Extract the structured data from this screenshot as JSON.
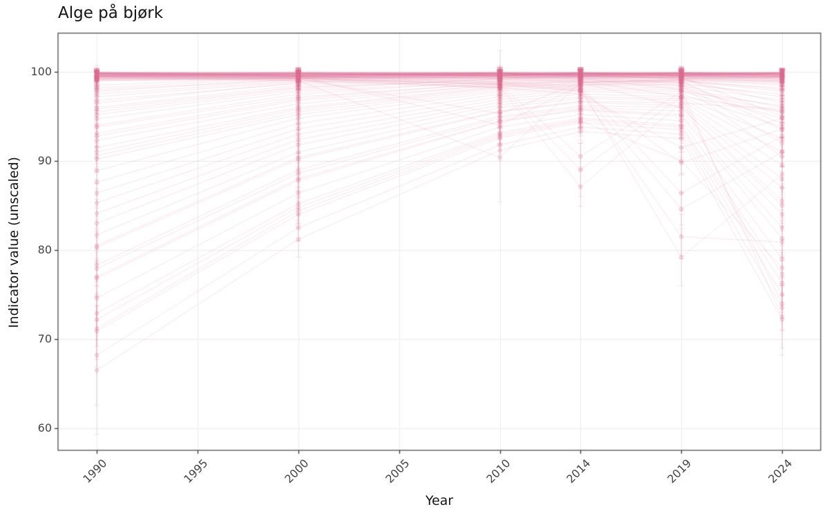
{
  "chart_data": {
    "type": "line",
    "title": "Alge på bjørk",
    "xlabel": "Year",
    "ylabel": "Indicator value (unscaled)",
    "x": [
      1990,
      2000,
      2010,
      2014,
      2019,
      2024
    ],
    "xticks": [
      1990,
      1995,
      2000,
      2005,
      2010,
      2014,
      2019,
      2024
    ],
    "yticks": [
      60,
      70,
      80,
      90,
      100
    ],
    "xlim": [
      1988.1,
      2025.9
    ],
    "ylim": [
      57.5,
      104.3
    ],
    "grid": "major-only",
    "legend": "none",
    "marker": "circle-with-errorbar",
    "colors": {
      "line": "#db7093",
      "grid": "#ebebeb",
      "border": "#4d4d4d",
      "tick": "#333333",
      "text": "#444444",
      "panel_bg": "#ffffff"
    },
    "series": [
      {
        "v": [
          99.9,
          99.8,
          99.9,
          99.9,
          99.8,
          99.9
        ],
        "e": 0.3
      },
      {
        "v": [
          99.7,
          99.9,
          99.8,
          99.7,
          99.9,
          99.8
        ],
        "e": 0.4
      },
      {
        "v": [
          100,
          99.9,
          100,
          99.9,
          100,
          99.9
        ],
        "e": 0.2
      },
      {
        "v": [
          99.5,
          99.7,
          99.6,
          99.8,
          99.7,
          99.5
        ],
        "e": 0.5
      },
      {
        "v": [
          99.8,
          99.6,
          99.9,
          99.5,
          99.8,
          99.7
        ],
        "e": 0.6
      },
      {
        "v": [
          99.3,
          99.5,
          99.7,
          99.6,
          99.4,
          99.5
        ],
        "e": 0.7
      },
      {
        "v": [
          99.6,
          99.8,
          99.5,
          99.9,
          99.6,
          99.8
        ],
        "e": 0.4
      },
      {
        "v": [
          99.9,
          99.7,
          99.8,
          99.8,
          99.9,
          99.7
        ],
        "e": 0.3
      },
      {
        "v": [
          99.4,
          99.6,
          99.8,
          99.7,
          99.8,
          99.6
        ],
        "e": 0.8
      },
      {
        "v": [
          99.8,
          99.9,
          99.7,
          99.9,
          99.8,
          99.9
        ],
        "e": 0.3
      },
      {
        "v": [
          99.2,
          99.4,
          99.6,
          99.5,
          99.6,
          99.3
        ],
        "e": 0.9
      },
      {
        "v": [
          99.7,
          99.5,
          99.8,
          99.6,
          99.7,
          99.9
        ],
        "e": 0.5
      },
      {
        "v": [
          99.9,
          100,
          99.9,
          100,
          99.9,
          100
        ],
        "e": 0.2
      },
      {
        "v": [
          99.5,
          99.8,
          99.7,
          99.9,
          99.8,
          99.7
        ],
        "e": 0.5
      },
      {
        "v": [
          99.8,
          99.7,
          99.9,
          99.8,
          99.7,
          99.8
        ],
        "e": 0.4
      },
      {
        "v": [
          99.1,
          99.3,
          99.5,
          99.4,
          99.2,
          99.4
        ],
        "e": 1.0
      },
      {
        "v": [
          99.6,
          99.7,
          99.8,
          99.6,
          99.9,
          99.7
        ],
        "e": 0.5
      },
      {
        "v": [
          99.9,
          99.8,
          99.7,
          99.9,
          99.8,
          99.6
        ],
        "e": 0.4
      },
      {
        "v": [
          99.3,
          99.6,
          99.4,
          99.7,
          99.5,
          99.6
        ],
        "e": 0.8
      },
      {
        "v": [
          99.7,
          99.8,
          99.9,
          99.7,
          99.8,
          99.9
        ],
        "e": 0.3
      },
      {
        "v": [
          99.8,
          99.5,
          99.6,
          99.8,
          99.7,
          99.5
        ],
        "e": 0.6
      },
      {
        "v": [
          99.0,
          99.2,
          99.4,
          99.3,
          99.5,
          99.2
        ],
        "e": 1.1
      },
      {
        "v": [
          99.5,
          99.6,
          99.7,
          99.8,
          99.6,
          99.8
        ],
        "e": 0.5
      },
      {
        "v": [
          99.9,
          99.9,
          99.8,
          99.7,
          99.9,
          99.8
        ],
        "e": 0.3
      },
      {
        "v": [
          99.6,
          99.4,
          99.7,
          99.5,
          99.6,
          99.4
        ],
        "e": 0.7
      },
      {
        "v": [
          99.8,
          99.8,
          99.9,
          99.9,
          99.7,
          99.9
        ],
        "e": 0.3
      },
      {
        "v": [
          99.2,
          99.5,
          99.3,
          99.6,
          99.4,
          99.5
        ],
        "e": 0.9
      },
      {
        "v": [
          99.7,
          99.6,
          99.8,
          99.7,
          99.9,
          99.8
        ],
        "e": 0.4
      },
      {
        "v": [
          99.4,
          99.7,
          99.6,
          99.8,
          99.7,
          99.6
        ],
        "e": 0.7
      },
      {
        "v": [
          99.9,
          99.7,
          99.9,
          99.8,
          99.8,
          99.9
        ],
        "e": 0.3
      },
      {
        "v": [
          99.6,
          99.9,
          99.7,
          99.8,
          99.9,
          99.7
        ],
        "e": 0.4
      },
      {
        "v": [
          99.1,
          99.4,
          99.2,
          99.5,
          99.3,
          99.4
        ],
        "e": 1.0
      },
      {
        "v": [
          99.8,
          99.6,
          99.8,
          99.7,
          99.6,
          99.8
        ],
        "e": 0.5
      },
      {
        "v": [
          99.5,
          99.5,
          99.6,
          99.6,
          99.5,
          99.7
        ],
        "e": 0.6
      },
      {
        "v": [
          99.7,
          99.9,
          99.6,
          99.9,
          99.7,
          99.9
        ],
        "e": 0.4
      },
      {
        "v": [
          99.3,
          99.4,
          99.6,
          99.4,
          99.6,
          99.5
        ],
        "e": 0.8
      },
      {
        "v": [
          99.9,
          99.8,
          99.8,
          99.9,
          99.7,
          99.8
        ],
        "e": 0.3
      },
      {
        "v": [
          99.4,
          99.5,
          99.7,
          99.6,
          99.8,
          99.5
        ],
        "e": 0.7
      },
      {
        "v": [
          99.8,
          99.7,
          99.6,
          99.8,
          99.9,
          99.6
        ],
        "e": 0.5
      },
      {
        "v": [
          99.6,
          99.6,
          99.9,
          99.7,
          99.8,
          99.8
        ],
        "e": 0.4
      },
      {
        "v": [
          99.0,
          99.3,
          99.5,
          99.2,
          99.4,
          99.1
        ],
        "e": 1.2
      },
      {
        "v": [
          99.7,
          99.7,
          99.8,
          99.8,
          99.7,
          99.7
        ],
        "e": 0.4
      },
      {
        "v": [
          99.5,
          99.9,
          99.8,
          99.6,
          99.9,
          99.8
        ],
        "e": 0.5
      },
      {
        "v": [
          99.9,
          99.6,
          99.7,
          99.9,
          99.6,
          99.9
        ],
        "e": 0.4
      },
      {
        "v": [
          99.2,
          99.3,
          99.4,
          99.5,
          99.3,
          99.3
        ],
        "e": 0.9
      },
      {
        "v": [
          99.8,
          99.9,
          99.9,
          99.8,
          99.9,
          99.9
        ],
        "e": 0.2
      },
      {
        "v": [
          99.6,
          99.5,
          99.6,
          99.7,
          99.5,
          99.6
        ],
        "e": 0.6
      },
      {
        "v": [
          99.4,
          99.8,
          99.5,
          99.7,
          99.6,
          99.7
        ],
        "e": 0.6
      },
      {
        "v": [
          97.8,
          99.2,
          99.6,
          99.7,
          99.5,
          99.4
        ],
        "e": 0.6
      },
      {
        "v": [
          96.5,
          98.8,
          99.4,
          99.5,
          99.6,
          99.2
        ],
        "e": 0.8
      },
      {
        "v": [
          95.2,
          98.0,
          99.2,
          99.4,
          99.3,
          98.8
        ],
        "e": 0.9
      },
      {
        "v": [
          94.0,
          97.5,
          99.0,
          99.2,
          99.4,
          99.0
        ],
        "e": 1.0
      },
      {
        "v": [
          93.1,
          97.0,
          98.8,
          99.1,
          99.2,
          98.5
        ],
        "e": 1.1
      },
      {
        "v": [
          92.3,
          96.4,
          98.6,
          99.0,
          98.9,
          98.2
        ],
        "e": 1.2
      },
      {
        "v": [
          91.5,
          96.0,
          98.4,
          98.8,
          99.0,
          97.8
        ],
        "e": 1.2
      },
      {
        "v": [
          90.6,
          95.5,
          98.2,
          98.7,
          98.8,
          97.2
        ],
        "e": 1.3
      },
      {
        "v": [
          96.0,
          98.5,
          99.3,
          99.5,
          99.2,
          96.5
        ],
        "e": 0.8
      },
      {
        "v": [
          97.2,
          98.9,
          99.5,
          99.6,
          99.4,
          95.0
        ],
        "e": 0.7
      },
      {
        "v": [
          95.8,
          98.3,
          99.1,
          99.3,
          99.0,
          93.5
        ],
        "e": 0.9
      },
      {
        "v": [
          94.7,
          97.8,
          98.9,
          99.1,
          98.7,
          92.0
        ],
        "e": 1.0
      },
      {
        "v": [
          93.8,
          97.2,
          98.7,
          98.9,
          98.5,
          90.5
        ],
        "e": 1.1
      },
      {
        "v": [
          98.2,
          99.3,
          99.7,
          99.8,
          99.6,
          99.5
        ],
        "e": 0.5
      },
      {
        "v": [
          97.5,
          99.0,
          99.5,
          99.6,
          99.3,
          98.9
        ],
        "e": 0.6
      },
      {
        "v": [
          96.8,
          98.7,
          99.3,
          99.4,
          99.5,
          99.1
        ],
        "e": 0.7
      },
      {
        "v": [
          98.5,
          99.4,
          99.8,
          99.7,
          99.8,
          99.6
        ],
        "e": 0.4
      },
      {
        "v": [
          92.8,
          96.8,
          98.5,
          98.9,
          99.1,
          98.0
        ],
        "e": 1.2
      },
      {
        "v": [
          91.0,
          95.8,
          98.3,
          98.6,
          98.4,
          96.8
        ],
        "e": 1.3
      },
      {
        "v": [
          90.2,
          95.2,
          98.0,
          98.5,
          98.6,
          97.5
        ],
        "e": 1.4
      },
      {
        "v": [
          98.0,
          99.1,
          99.6,
          99.5,
          99.7,
          99.3
        ],
        "e": 0.5
      },
      {
        "v": [
          95.5,
          98.2,
          99.2,
          99.3,
          98.8,
          94.2
        ],
        "e": 0.9
      },
      {
        "v": [
          88.9,
          94.8,
          97.8,
          98.4,
          98.2,
          96.0
        ],
        "e": 1.4
      },
      {
        "v": [
          87.6,
          94.2,
          97.5,
          98.2,
          98.0,
          95.5
        ],
        "e": 1.5
      },
      {
        "v": [
          86.4,
          93.6,
          97.2,
          98.0,
          97.8,
          94.8
        ],
        "e": 1.5
      },
      {
        "v": [
          85.3,
          93.0,
          96.9,
          97.8,
          97.5,
          93.8
        ],
        "e": 1.6
      },
      {
        "v": [
          84.1,
          92.4,
          96.6,
          97.5,
          97.2,
          92.5
        ],
        "e": 1.6
      },
      {
        "v": [
          83.0,
          91.8,
          96.3,
          97.2,
          97.0,
          91.0
        ],
        "e": 1.7
      },
      {
        "v": [
          81.7,
          91.0,
          96.0,
          97.0,
          96.8,
          89.5
        ],
        "e": 1.7
      },
      {
        "v": [
          80.5,
          90.4,
          95.6,
          96.7,
          96.5,
          88.0
        ],
        "e": 1.8
      },
      {
        "v": [
          80.3,
          90.2,
          95.5,
          96.6,
          96.2,
          87.0
        ],
        "e": 1.8
      },
      {
        "v": [
          78.3,
          89.0,
          95.0,
          96.2,
          96.0,
          85.5
        ],
        "e": 1.9
      },
      {
        "v": [
          77.9,
          88.6,
          94.8,
          96.0,
          95.6,
          84.0
        ],
        "e": 1.9
      },
      {
        "v": [
          77.0,
          88.0,
          94.5,
          95.8,
          95.2,
          82.5
        ],
        "e": 2.0
      },
      {
        "v": [
          76.8,
          87.8,
          94.4,
          95.7,
          95.0,
          81.3
        ],
        "e": 2.0
      },
      {
        "v": [
          74.6,
          86.4,
          93.8,
          95.2,
          94.5,
          79.0
        ],
        "e": [
          2.5,
          1.8,
          1.2,
          1,
          1.2,
          2.2
        ]
      },
      {
        "v": [
          72.9,
          85.2,
          93.2,
          94.8,
          94.0,
          77.3
        ],
        "e": [
          3,
          1.8,
          1.2,
          1,
          1.2,
          2.4
        ]
      },
      {
        "v": [
          72.2,
          84.8,
          93.0,
          94.6,
          93.8,
          76.3
        ],
        "e": [
          3,
          1.8,
          1.2,
          1,
          1.2,
          2.5
        ]
      },
      {
        "v": [
          70.9,
          84.0,
          92.6,
          94.3,
          93.5,
          75.0
        ],
        "e": [
          4,
          1.5,
          1,
          1,
          1,
          2
        ]
      },
      {
        "v": [
          68.2,
          82.5,
          91.8,
          93.8,
          93.0,
          73.5
        ],
        "e": [
          5.6,
          1.5,
          1,
          1,
          1,
          2.5
        ]
      },
      {
        "v": [
          66.5,
          81.2,
          91.2,
          93.3,
          92.5,
          72.2
        ],
        "e": [
          7.2,
          2,
          1.2,
          1,
          1.5,
          4
        ]
      },
      {
        "v": [
          71.2,
          84.4,
          92.8,
          94.5,
          90.0,
          78.0
        ],
        "e": [
          3.5,
          1.5,
          1,
          1,
          1.5,
          2
        ]
      },
      {
        "v": [
          99.5,
          99.0,
          90.4,
          98.8,
          99.2,
          99.0
        ],
        "e": [
          0.5,
          0.6,
          5,
          0.8,
          0.6,
          0.7
        ]
      },
      {
        "v": [
          99.8,
          99.5,
          94.0,
          98.5,
          99.0,
          98.7
        ],
        "e": [
          0.4,
          0.5,
          2,
          0.7,
          0.6,
          0.8
        ]
      },
      {
        "v": [
          99.6,
          99.2,
          95.3,
          98.8,
          99.1,
          98.9
        ],
        "e": 0.8
      },
      {
        "v": [
          99.5,
          99.3,
          98.2,
          87.1,
          96.5,
          95.8
        ],
        "e": [
          0.5,
          0.5,
          0.8,
          2.2,
          1,
          1.2
        ]
      },
      {
        "v": [
          99.6,
          99.4,
          98.6,
          90.5,
          97.8,
          96.2
        ],
        "e": [
          0.4,
          0.5,
          0.7,
          1.5,
          0.9,
          1.1
        ]
      },
      {
        "v": [
          99.4,
          99.1,
          98.3,
          89.0,
          97.2,
          95.5
        ],
        "e": [
          0.5,
          0.6,
          0.8,
          3,
          0.9,
          1.2
        ]
      },
      {
        "v": [
          99.9,
          99.6,
          98.8,
          98.2,
          79.2,
          88.5
        ],
        "e": [
          0.3,
          0.5,
          0.8,
          1,
          3.2,
          2
        ]
      },
      {
        "v": [
          99.7,
          99.3,
          98.5,
          97.8,
          81.5,
          80.9
        ],
        "e": [
          0.4,
          0.6,
          0.9,
          1.1,
          2.5,
          1.8
        ]
      },
      {
        "v": [
          99.8,
          99.5,
          98.9,
          98.4,
          86.4,
          92.8
        ],
        "e": [
          0.4,
          0.5,
          0.8,
          1,
          2,
          1.5
        ]
      },
      {
        "v": [
          99.5,
          99.2,
          98.6,
          97.9,
          89.8,
          93.6
        ],
        "e": 1.2
      },
      {
        "v": [
          99.3,
          99.0,
          98.2,
          97.5,
          91.5,
          94.8
        ],
        "e": 1.1
      },
      {
        "v": [
          99.6,
          99.3,
          98.7,
          98.0,
          84.6,
          91.0
        ],
        "e": [
          0.4,
          0.5,
          0.8,
          1,
          1.8,
          1.6
        ]
      },
      {
        "v": [
          99.9,
          99.8,
          99.6,
          99.3,
          98.0,
          72.5
        ],
        "e": [
          0.3,
          0.4,
          0.5,
          0.7,
          1,
          3.5
        ]
      },
      {
        "v": [
          99.8,
          99.6,
          99.4,
          99.0,
          97.2,
          74.0
        ],
        "e": [
          0.4,
          0.5,
          0.6,
          0.8,
          1.2,
          3
        ]
      },
      {
        "v": [
          99.8,
          99.7,
          99.8,
          99.5,
          99.6,
          99.4
        ],
        "e": [
          0.5,
          0.8,
          2.6,
          0.7,
          0.6,
          0.9
        ]
      },
      {
        "v": [
          99.7,
          99.5,
          99.2,
          98.8,
          96.0,
          85.0
        ],
        "e": [
          0.4,
          0.5,
          0.7,
          0.9,
          1.3,
          2
        ]
      }
    ]
  }
}
